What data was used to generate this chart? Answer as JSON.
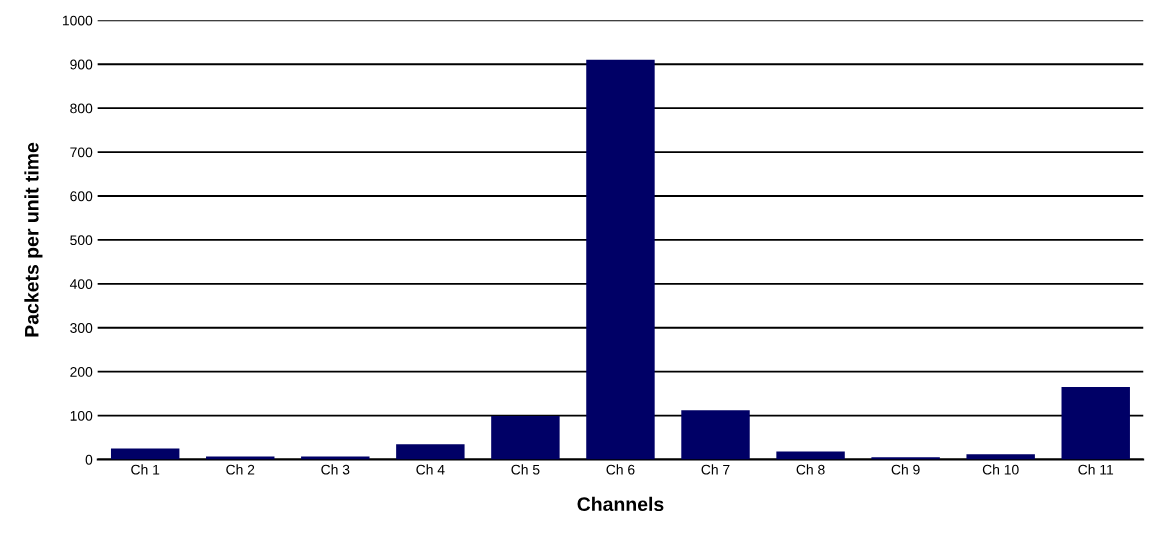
{
  "chart_data": {
    "type": "bar",
    "xlabel": "Channels",
    "ylabel": "Packets per unit time",
    "categories": [
      "Ch 1",
      "Ch 2",
      "Ch 3",
      "Ch 4",
      "Ch 5",
      "Ch 6",
      "Ch 7",
      "Ch 8",
      "Ch 9",
      "Ch 10",
      "Ch 11"
    ],
    "values": [
      25,
      7,
      7,
      35,
      99,
      910,
      112,
      18,
      5,
      12,
      165
    ],
    "color": "#000066",
    "ylim": [
      0,
      1000
    ],
    "yticks": [
      0,
      100,
      200,
      300,
      400,
      500,
      600,
      700,
      800,
      900,
      1000
    ],
    "grid": "y"
  }
}
